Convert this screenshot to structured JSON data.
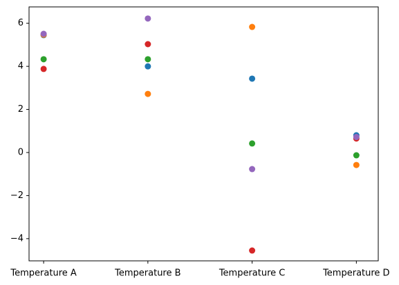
{
  "chart_data": {
    "type": "scatter",
    "categories": [
      "Temperature A",
      "Temperature B",
      "Temperature C",
      "Temperature D"
    ],
    "series": [
      {
        "color": "#1f77b4",
        "values": [
          5.45,
          4.0,
          3.43,
          0.8
        ]
      },
      {
        "color": "#ff7f0e",
        "values": [
          5.47,
          2.72,
          5.83,
          -0.58
        ]
      },
      {
        "color": "#2ca02c",
        "values": [
          4.33,
          4.33,
          0.42,
          -0.13
        ]
      },
      {
        "color": "#d62728",
        "values": [
          3.88,
          5.03,
          -4.55,
          0.65
        ]
      },
      {
        "color": "#9467bd",
        "values": [
          5.51,
          6.22,
          -0.77,
          0.72
        ]
      }
    ],
    "ylim": [
      -5.03,
      6.76
    ],
    "yticks": [
      {
        "value": -4,
        "label": "−4"
      },
      {
        "value": -2,
        "label": "−2"
      },
      0,
      2,
      4,
      6
    ],
    "grid": false
  }
}
